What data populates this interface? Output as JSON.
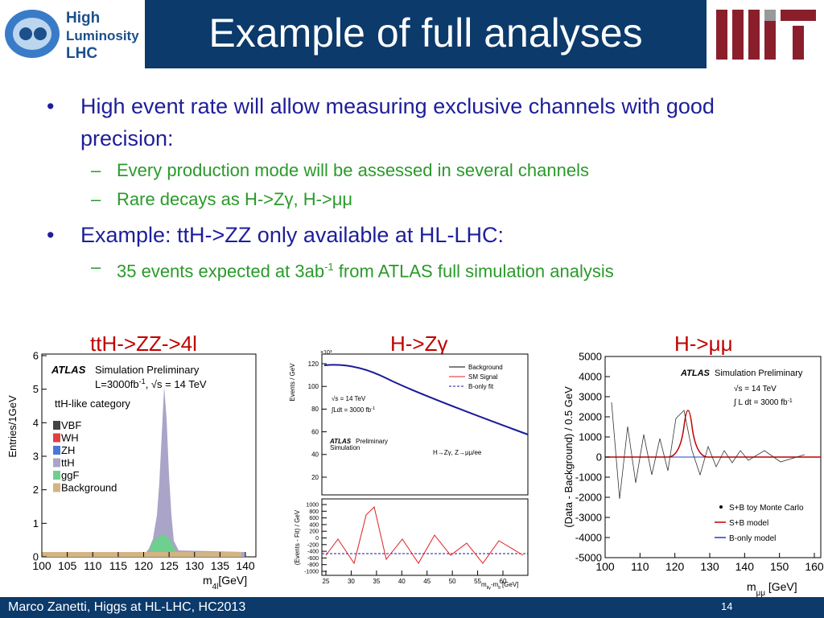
{
  "header": {
    "logo": {
      "line1": "High",
      "line2": "Luminosity",
      "line3": "LHC"
    },
    "title": "Example of full analyses"
  },
  "bullets": [
    {
      "text": "High event rate will allow measuring exclusive channels with good precision:",
      "sub": [
        {
          "text": "Every production mode will be assessed in several channels"
        },
        {
          "text": "Rare decays as H->Zγ, H->μμ"
        }
      ]
    },
    {
      "text": "Example: ttH->ZZ only available at HL-LHC:",
      "sub": [
        {
          "text": "35 events expected at 3ab",
          "sup": "-1",
          "after": " from ATLAS full simulation analysis"
        }
      ]
    }
  ],
  "figures": [
    {
      "caption": "ttH->ZZ->4l",
      "ylabel": "Entries/1GeV",
      "xlabel": "m",
      "xlabel_sub": "4l",
      "xlabel_after": "[GeV]",
      "yticks": [
        "0",
        "1",
        "2",
        "3",
        "4",
        "5",
        "6"
      ],
      "xticks": [
        "100",
        "105",
        "110",
        "115",
        "120",
        "125",
        "130",
        "135",
        "140"
      ],
      "atlas": "ATLAS",
      "atlas_note": "Simulation Preliminary",
      "lumi": "L=3000fb",
      "lumi_sup": "-1",
      "energy": ", √s = 14 TeV",
      "category": "ttH-like category",
      "legend": [
        "VBF",
        "WH",
        "ZH",
        "ttH",
        "ggF",
        "Background"
      ]
    },
    {
      "caption": "H->Zγ",
      "ylabel": "Events / GeV",
      "yscale": "×10",
      "yscale_sup": "3",
      "yticks": [
        "20",
        "40",
        "60",
        "80",
        "100",
        "120"
      ],
      "legend": [
        "Background",
        "SM Signal",
        "B-only fit"
      ],
      "energy": "√s = 14 TeV",
      "lumi": "∫Ldt = 3000 fb",
      "lumi_sup": "-1",
      "atlas": "ATLAS",
      "atlas_note": "Preliminary",
      "atlas_note2": "Simulation",
      "process": "H→Zγ, Z→μμ/ee",
      "ratio_ylabel": "(Events - Fit) / GeV",
      "ratio_yticks": [
        "-1000",
        "-800",
        "-600",
        "-400",
        "-200",
        "0",
        "200",
        "400",
        "600",
        "800",
        "1000"
      ],
      "xticks": [
        "25",
        "30",
        "35",
        "40",
        "45",
        "50",
        "55",
        "60"
      ],
      "xlabel": "m",
      "xlabel_sub": "llγ",
      "xlabel_mid": "-m",
      "xlabel_sub2": "ll",
      "xlabel_after": " [GeV]"
    },
    {
      "caption": "H->μμ",
      "ylabel": "(Data - Background) / 0.5 GeV",
      "yticks": [
        "-5000",
        "-4000",
        "-3000",
        "-2000",
        "-1000",
        "0",
        "1000",
        "2000",
        "3000",
        "4000",
        "5000"
      ],
      "xticks": [
        "100",
        "110",
        "120",
        "130",
        "140",
        "150",
        "160"
      ],
      "xlabel": "m",
      "xlabel_sub": "μμ",
      "xlabel_after": " [GeV]",
      "atlas": "ATLAS",
      "atlas_note": "Simulation Preliminary",
      "energy": "√s = 14 TeV",
      "lumi": "∫ L dt = 3000 fb",
      "lumi_sup": "-1",
      "legend": [
        "S+B toy Monte Carlo",
        "S+B model",
        "B-only model"
      ]
    }
  ],
  "footer": {
    "text": "Marco Zanetti, Higgs at HL-LHC, HC2013",
    "page": "14"
  }
}
